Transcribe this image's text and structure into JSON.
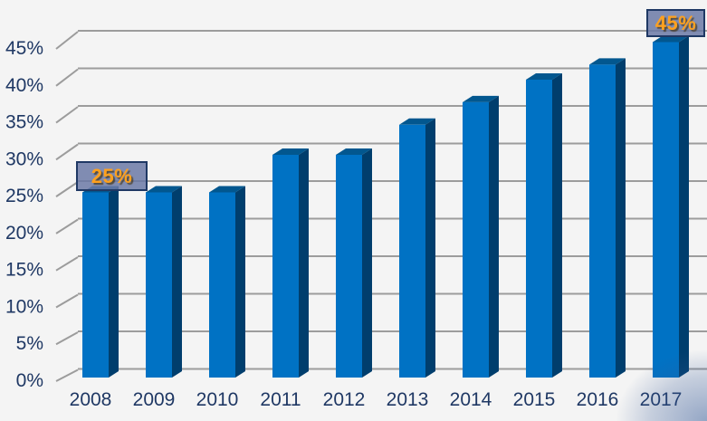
{
  "chart_data": {
    "type": "bar",
    "style": "3d-column",
    "title": "",
    "xlabel": "",
    "ylabel": "",
    "categories": [
      "2008",
      "2009",
      "2010",
      "2011",
      "2012",
      "2013",
      "2014",
      "2015",
      "2016",
      "2017"
    ],
    "values": [
      25,
      25,
      25,
      30,
      30,
      34,
      37,
      40,
      42,
      45
    ],
    "unit": "%",
    "ylim": [
      0,
      45
    ],
    "ytick_step": 5,
    "ytick_labels": [
      "0%",
      "5%",
      "10%",
      "15%",
      "20%",
      "25%",
      "30%",
      "35%",
      "40%",
      "45%"
    ],
    "grid": true,
    "legend": false,
    "callouts": [
      {
        "category": "2008",
        "text": "25%"
      },
      {
        "category": "2017",
        "text": "45%"
      }
    ],
    "colors": {
      "background": "#f4f4f4",
      "gridline": "#9c9c9c",
      "axis_text": "#1f3864",
      "bar_front": "#0072c4",
      "bar_top": "#02578f",
      "bar_side": "#003e6d",
      "callout_bg": "#6b79a6d9",
      "callout_border": "#1f3864",
      "callout_text": "#ffa11e"
    }
  }
}
